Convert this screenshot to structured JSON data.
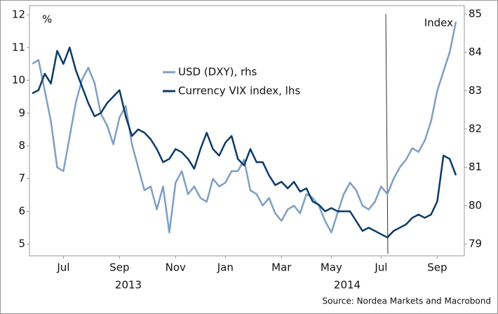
{
  "chart_data": {
    "type": "line",
    "unit_left": "%",
    "unit_right": "Index",
    "source": "Source: Nordea Markets and Macrobond",
    "year_labels": [
      "2013",
      "2014"
    ],
    "categories": [
      null,
      null,
      null,
      null,
      null,
      "Jul",
      null,
      null,
      null,
      null,
      null,
      null,
      null,
      null,
      "Sep",
      null,
      null,
      null,
      null,
      null,
      null,
      null,
      null,
      "Nov",
      null,
      null,
      null,
      null,
      null,
      null,
      null,
      "Jan",
      null,
      null,
      null,
      null,
      null,
      null,
      null,
      null,
      "Mar",
      null,
      null,
      null,
      null,
      null,
      null,
      null,
      "May",
      null,
      null,
      null,
      null,
      null,
      null,
      null,
      "Jul",
      null,
      null,
      null,
      null,
      null,
      null,
      null,
      null,
      "Sep",
      null,
      null,
      null
    ],
    "series": [
      {
        "name": "USD (DXY), rhs",
        "color": "#7f9fc2",
        "axis": "y2",
        "values": [
          83.7,
          83.8,
          83.0,
          82.2,
          81.0,
          80.9,
          81.8,
          82.7,
          83.3,
          83.6,
          83.2,
          82.4,
          82.1,
          81.6,
          82.3,
          82.6,
          81.6,
          81.0,
          80.4,
          80.5,
          79.9,
          80.5,
          79.3,
          80.6,
          80.9,
          80.3,
          80.5,
          80.2,
          80.1,
          80.7,
          80.5,
          80.6,
          80.9,
          80.9,
          81.2,
          80.4,
          80.3,
          80.0,
          80.2,
          79.8,
          79.6,
          79.9,
          80.0,
          79.8,
          80.3,
          80.2,
          80.0,
          79.6,
          79.3,
          79.8,
          80.3,
          80.6,
          80.4,
          80.0,
          79.9,
          80.1,
          80.5,
          80.3,
          80.7,
          81.0,
          81.2,
          81.5,
          81.4,
          81.7,
          82.2,
          83.0,
          83.5,
          84.0,
          84.8
        ]
      },
      {
        "name": "Currency VIX index, lhs",
        "color": "#0d3a66",
        "values": [
          9.6,
          9.7,
          10.2,
          9.9,
          10.9,
          10.5,
          11.0,
          10.3,
          9.8,
          9.3,
          8.9,
          9.0,
          9.3,
          9.5,
          9.7,
          8.9,
          8.3,
          8.5,
          8.4,
          8.2,
          7.9,
          7.5,
          7.6,
          7.9,
          7.8,
          7.6,
          7.3,
          7.9,
          8.4,
          7.9,
          7.7,
          8.1,
          8.3,
          7.6,
          7.4,
          7.9,
          7.5,
          7.5,
          7.1,
          6.8,
          6.9,
          6.7,
          6.9,
          6.6,
          6.7,
          6.3,
          6.2,
          6.0,
          6.1,
          6.0,
          6.0,
          6.0,
          5.7,
          5.4,
          5.5,
          5.4,
          5.3,
          5.2,
          5.4,
          5.5,
          5.6,
          5.8,
          5.9,
          5.8,
          5.9,
          6.3,
          7.7,
          7.6,
          7.1
        ]
      }
    ],
    "ylim": [
      4.64,
      12.28
    ],
    "yticks": [
      5,
      6,
      7,
      8,
      9,
      10,
      11,
      12
    ],
    "y2lim": [
      78.69,
      85.22
    ],
    "y2ticks": [
      79,
      80,
      81,
      82,
      83,
      84,
      85
    ],
    "grid": false
  }
}
